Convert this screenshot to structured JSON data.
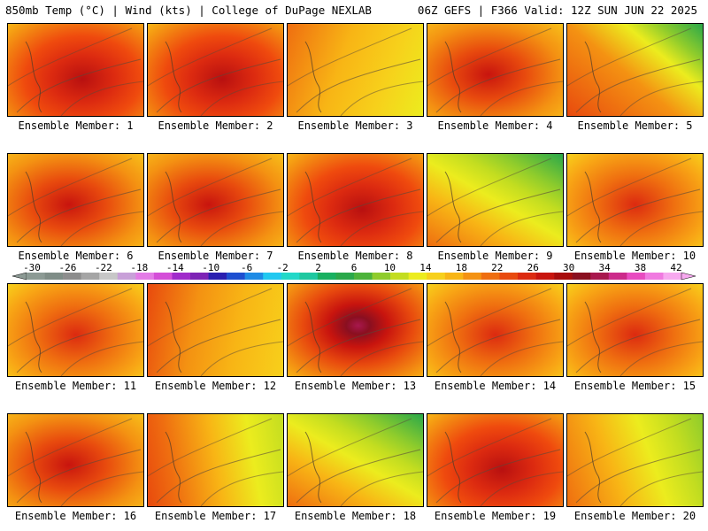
{
  "header": {
    "left": "850mb Temp (°C) | Wind (kts) | College of DuPage NEXLAB",
    "right": "06Z GEFS | F366 Valid: 12Z SUN JUN 22 2025"
  },
  "colorbar": {
    "labels": [
      "-30",
      "-26",
      "-22",
      "-18",
      "-14",
      "-10",
      "-6",
      "-2",
      "2",
      "6",
      "10",
      "14",
      "18",
      "22",
      "26",
      "30",
      "34",
      "38",
      "42"
    ],
    "colors": [
      "#8c9a94",
      "#7f8d87",
      "#8d8d8d",
      "#a5a5a5",
      "#c7c7c7",
      "#c8a0d8",
      "#e37be6",
      "#d44ed8",
      "#a02aca",
      "#7d23b5",
      "#2a1fb0",
      "#1d4fd0",
      "#1e8be5",
      "#21c8f0",
      "#22d8c8",
      "#1ec8a0",
      "#18b060",
      "#2aa84a",
      "#4cb33a",
      "#8fcc2c",
      "#c3dd20",
      "#ecec1e",
      "#f7d01b",
      "#f8b515",
      "#f49212",
      "#ef6e10",
      "#e84a0e",
      "#dc2a10",
      "#c8140e",
      "#a80c0c",
      "#8a0f20",
      "#a8184e",
      "#cc2a8a",
      "#e84bc0",
      "#f07ae0",
      "#f7a8ef"
    ]
  },
  "members": [
    {
      "label": "Ensemble Member: 1",
      "fill": "red-hot"
    },
    {
      "label": "Ensemble Member: 2",
      "fill": "red-hot"
    },
    {
      "label": "Ensemble Member: 3",
      "fill": "yellow-mild"
    },
    {
      "label": "Ensemble Member: 4",
      "fill": "red-warm"
    },
    {
      "label": "Ensemble Member: 5",
      "fill": "orange-green-ne"
    },
    {
      "label": "Ensemble Member: 6",
      "fill": "red-warm"
    },
    {
      "label": "Ensemble Member: 7",
      "fill": "red-warm"
    },
    {
      "label": "Ensemble Member: 8",
      "fill": "red-hot"
    },
    {
      "label": "Ensemble Member: 9",
      "fill": "yellow-green-ne"
    },
    {
      "label": "Ensemble Member: 10",
      "fill": "orange-warm"
    },
    {
      "label": "Ensemble Member: 11",
      "fill": "orange-warm"
    },
    {
      "label": "Ensemble Member: 12",
      "fill": "orange-mild"
    },
    {
      "label": "Ensemble Member: 13",
      "fill": "purple-core"
    },
    {
      "label": "Ensemble Member: 14",
      "fill": "orange-warm"
    },
    {
      "label": "Ensemble Member: 15",
      "fill": "orange-warm"
    },
    {
      "label": "Ensemble Member: 16",
      "fill": "red-warm"
    },
    {
      "label": "Ensemble Member: 17",
      "fill": "orange-green-east"
    },
    {
      "label": "Ensemble Member: 18",
      "fill": "yellow-green-ne"
    },
    {
      "label": "Ensemble Member: 19",
      "fill": "red-hot"
    },
    {
      "label": "Ensemble Member: 20",
      "fill": "yellow-green-east"
    }
  ]
}
